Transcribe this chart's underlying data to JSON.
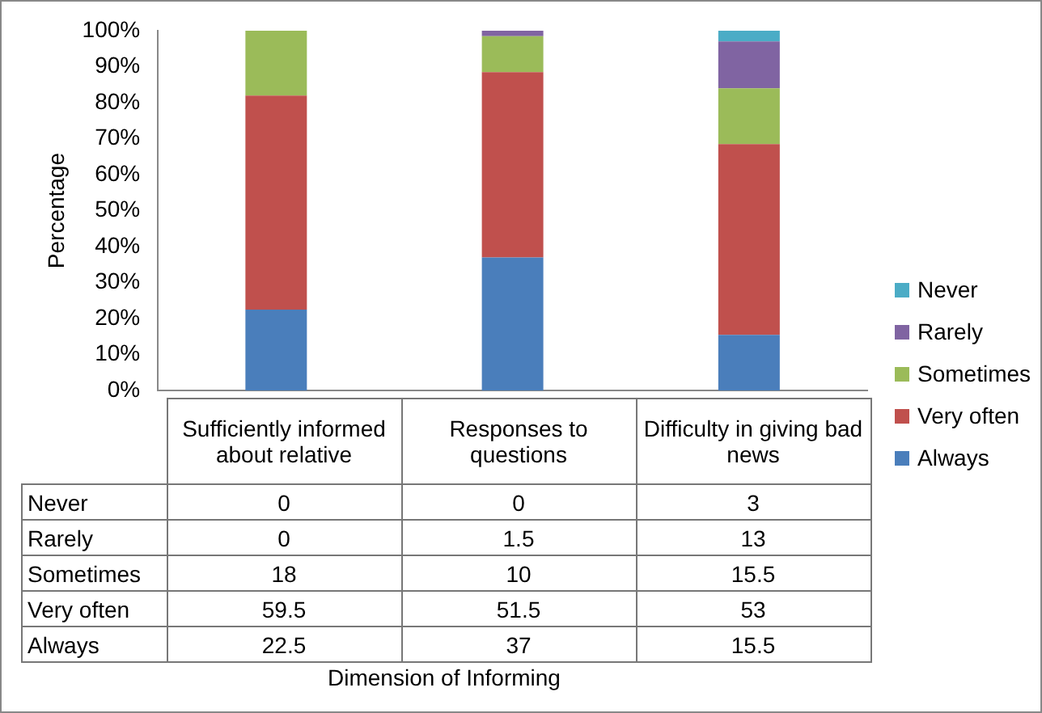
{
  "chart_data": {
    "type": "bar",
    "stacked": true,
    "annotations": [
      "Dimension of Informing"
    ],
    "ylabel": "Percentage",
    "categories": [
      "Sufficiently informed about relative",
      "Responses to questions",
      "Difficulty in giving bad news"
    ],
    "series": [
      {
        "name": "Always",
        "color": "#4a7ebb",
        "values": [
          22.5,
          37,
          15.5
        ]
      },
      {
        "name": "Very often",
        "color": "#c0504d",
        "values": [
          59.5,
          51.5,
          53
        ]
      },
      {
        "name": "Sometimes",
        "color": "#9bbb59",
        "values": [
          18,
          10,
          15.5
        ]
      },
      {
        "name": "Rarely",
        "color": "#8064a2",
        "values": [
          0,
          1.5,
          13
        ]
      },
      {
        "name": "Never",
        "color": "#4bacc6",
        "values": [
          0,
          0,
          3
        ]
      }
    ],
    "ylim": [
      0,
      100
    ],
    "yticks": [
      {
        "value": 0,
        "label": "0%"
      },
      {
        "value": 10,
        "label": "10%"
      },
      {
        "value": 20,
        "label": "20%"
      },
      {
        "value": 30,
        "label": "30%"
      },
      {
        "value": 40,
        "label": "40%"
      },
      {
        "value": 50,
        "label": "50%"
      },
      {
        "value": 60,
        "label": "60%"
      },
      {
        "value": 70,
        "label": "70%"
      },
      {
        "value": 80,
        "label": "80%"
      },
      {
        "value": 90,
        "label": "90%"
      },
      {
        "value": 100,
        "label": "100%"
      }
    ],
    "grid": false,
    "legend": "right",
    "data_labels": true
  }
}
